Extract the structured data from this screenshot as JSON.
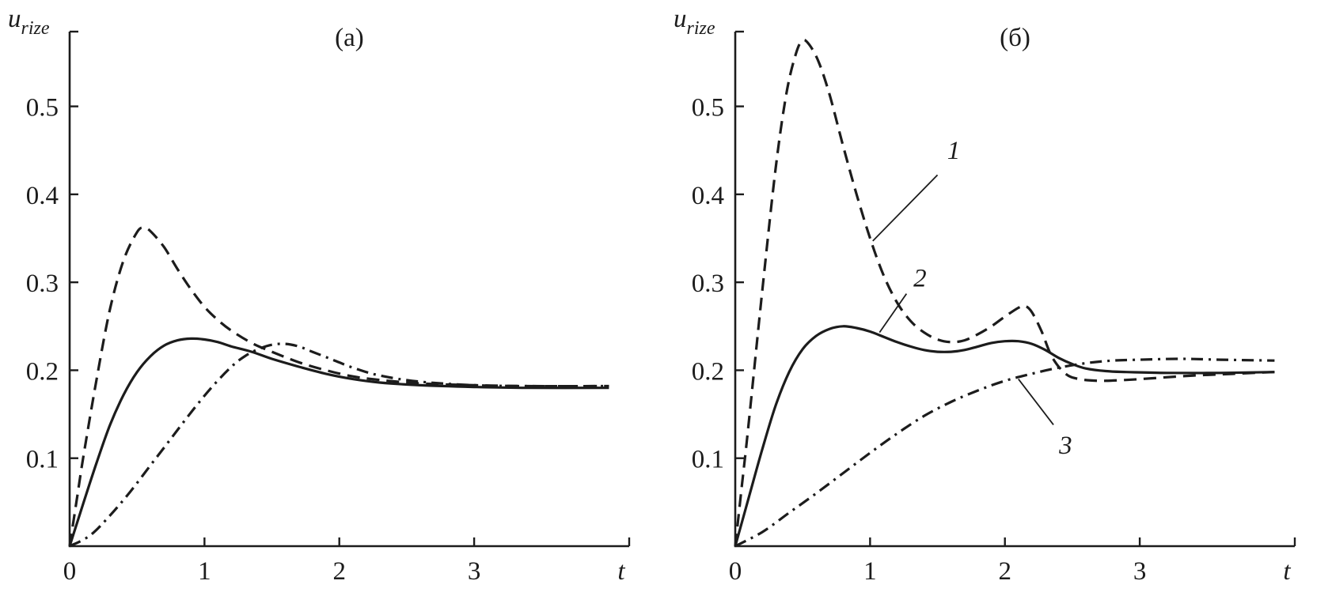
{
  "figure": {
    "background": "#ffffff",
    "stroke_color": "#1c1c1c"
  },
  "chart_data": [
    {
      "type": "line",
      "title": "(а)",
      "xlabel": "t",
      "ylabel": {
        "main": "u",
        "sub": "rize"
      },
      "axis": {
        "x_range": [
          0,
          4.15
        ],
        "y_range": [
          0,
          0.585
        ],
        "xticks": [
          0,
          1,
          2,
          3
        ],
        "yticks": [
          0.1,
          0.2,
          0.3,
          0.4,
          0.5
        ],
        "grid": false
      },
      "series": [
        {
          "name": "curve-1",
          "line_style": "dashed",
          "points": [
            [
              0,
              0
            ],
            [
              0.05,
              0.05
            ],
            [
              0.1,
              0.1
            ],
            [
              0.2,
              0.19
            ],
            [
              0.3,
              0.27
            ],
            [
              0.4,
              0.325
            ],
            [
              0.5,
              0.357
            ],
            [
              0.55,
              0.362
            ],
            [
              0.6,
              0.358
            ],
            [
              0.7,
              0.34
            ],
            [
              0.8,
              0.315
            ],
            [
              0.9,
              0.292
            ],
            [
              1.0,
              0.272
            ],
            [
              1.1,
              0.257
            ],
            [
              1.2,
              0.245
            ],
            [
              1.35,
              0.231
            ],
            [
              1.5,
              0.221
            ],
            [
              1.7,
              0.209
            ],
            [
              1.9,
              0.2
            ],
            [
              2.1,
              0.193
            ],
            [
              2.3,
              0.189
            ],
            [
              2.6,
              0.185
            ],
            [
              3.0,
              0.183
            ],
            [
              3.4,
              0.182
            ],
            [
              4.0,
              0.182
            ]
          ]
        },
        {
          "name": "curve-2",
          "line_style": "solid",
          "points": [
            [
              0,
              0
            ],
            [
              0.1,
              0.048
            ],
            [
              0.2,
              0.095
            ],
            [
              0.3,
              0.138
            ],
            [
              0.4,
              0.172
            ],
            [
              0.5,
              0.198
            ],
            [
              0.6,
              0.216
            ],
            [
              0.7,
              0.228
            ],
            [
              0.8,
              0.234
            ],
            [
              0.9,
              0.236
            ],
            [
              1.0,
              0.235
            ],
            [
              1.1,
              0.232
            ],
            [
              1.2,
              0.227
            ],
            [
              1.35,
              0.221
            ],
            [
              1.5,
              0.213
            ],
            [
              1.7,
              0.204
            ],
            [
              1.9,
              0.196
            ],
            [
              2.1,
              0.19
            ],
            [
              2.3,
              0.186
            ],
            [
              2.6,
              0.183
            ],
            [
              3.0,
              0.181
            ],
            [
              3.4,
              0.18
            ],
            [
              4.0,
              0.18
            ]
          ]
        },
        {
          "name": "curve-3",
          "line_style": "dashdot",
          "points": [
            [
              0,
              0
            ],
            [
              0.15,
              0.012
            ],
            [
              0.3,
              0.035
            ],
            [
              0.45,
              0.062
            ],
            [
              0.6,
              0.092
            ],
            [
              0.75,
              0.122
            ],
            [
              0.9,
              0.152
            ],
            [
              1.05,
              0.18
            ],
            [
              1.2,
              0.204
            ],
            [
              1.3,
              0.216
            ],
            [
              1.4,
              0.224
            ],
            [
              1.5,
              0.229
            ],
            [
              1.6,
              0.23
            ],
            [
              1.7,
              0.227
            ],
            [
              1.8,
              0.221
            ],
            [
              1.95,
              0.212
            ],
            [
              2.1,
              0.203
            ],
            [
              2.3,
              0.194
            ],
            [
              2.6,
              0.187
            ],
            [
              3.0,
              0.183
            ],
            [
              3.4,
              0.182
            ],
            [
              4.0,
              0.182
            ]
          ]
        }
      ],
      "annotations": []
    },
    {
      "type": "line",
      "title": "(б)",
      "xlabel": "t",
      "ylabel": {
        "main": "u",
        "sub": "rize"
      },
      "axis": {
        "x_range": [
          0,
          4.15
        ],
        "y_range": [
          0,
          0.585
        ],
        "xticks": [
          0,
          1,
          2,
          3
        ],
        "yticks": [
          0.1,
          0.2,
          0.3,
          0.4,
          0.5
        ],
        "grid": false
      },
      "series": [
        {
          "name": "curve-1",
          "line_style": "dashed",
          "points": [
            [
              0,
              0
            ],
            [
              0.05,
              0.07
            ],
            [
              0.1,
              0.14
            ],
            [
              0.2,
              0.29
            ],
            [
              0.3,
              0.43
            ],
            [
              0.38,
              0.515
            ],
            [
              0.45,
              0.56
            ],
            [
              0.5,
              0.575
            ],
            [
              0.55,
              0.57
            ],
            [
              0.62,
              0.55
            ],
            [
              0.7,
              0.513
            ],
            [
              0.8,
              0.455
            ],
            [
              0.9,
              0.4
            ],
            [
              1.0,
              0.35
            ],
            [
              1.1,
              0.308
            ],
            [
              1.2,
              0.277
            ],
            [
              1.3,
              0.256
            ],
            [
              1.4,
              0.243
            ],
            [
              1.5,
              0.235
            ],
            [
              1.6,
              0.232
            ],
            [
              1.7,
              0.234
            ],
            [
              1.8,
              0.241
            ],
            [
              1.9,
              0.25
            ],
            [
              2.0,
              0.261
            ],
            [
              2.1,
              0.271
            ],
            [
              2.15,
              0.273
            ],
            [
              2.2,
              0.266
            ],
            [
              2.27,
              0.245
            ],
            [
              2.35,
              0.215
            ],
            [
              2.45,
              0.196
            ],
            [
              2.55,
              0.19
            ],
            [
              2.7,
              0.188
            ],
            [
              2.9,
              0.189
            ],
            [
              3.1,
              0.191
            ],
            [
              3.4,
              0.194
            ],
            [
              3.7,
              0.196
            ],
            [
              4.0,
              0.198
            ]
          ]
        },
        {
          "name": "curve-2",
          "line_style": "solid",
          "points": [
            [
              0,
              0
            ],
            [
              0.1,
              0.055
            ],
            [
              0.2,
              0.11
            ],
            [
              0.3,
              0.16
            ],
            [
              0.4,
              0.198
            ],
            [
              0.5,
              0.224
            ],
            [
              0.6,
              0.239
            ],
            [
              0.7,
              0.247
            ],
            [
              0.8,
              0.25
            ],
            [
              0.9,
              0.248
            ],
            [
              1.0,
              0.244
            ],
            [
              1.1,
              0.238
            ],
            [
              1.2,
              0.232
            ],
            [
              1.3,
              0.227
            ],
            [
              1.4,
              0.223
            ],
            [
              1.5,
              0.221
            ],
            [
              1.6,
              0.221
            ],
            [
              1.7,
              0.223
            ],
            [
              1.8,
              0.227
            ],
            [
              1.9,
              0.231
            ],
            [
              2.0,
              0.233
            ],
            [
              2.1,
              0.233
            ],
            [
              2.2,
              0.23
            ],
            [
              2.3,
              0.223
            ],
            [
              2.4,
              0.214
            ],
            [
              2.5,
              0.207
            ],
            [
              2.6,
              0.202
            ],
            [
              2.75,
              0.199
            ],
            [
              2.9,
              0.198
            ],
            [
              3.2,
              0.197
            ],
            [
              3.6,
              0.197
            ],
            [
              4.0,
              0.198
            ]
          ]
        },
        {
          "name": "curve-3",
          "line_style": "dashdot",
          "points": [
            [
              0,
              0
            ],
            [
              0.2,
              0.016
            ],
            [
              0.4,
              0.038
            ],
            [
              0.6,
              0.06
            ],
            [
              0.8,
              0.083
            ],
            [
              1.0,
              0.106
            ],
            [
              1.2,
              0.128
            ],
            [
              1.4,
              0.148
            ],
            [
              1.6,
              0.164
            ],
            [
              1.8,
              0.177
            ],
            [
              2.0,
              0.188
            ],
            [
              2.2,
              0.196
            ],
            [
              2.4,
              0.203
            ],
            [
              2.6,
              0.208
            ],
            [
              2.8,
              0.211
            ],
            [
              3.0,
              0.212
            ],
            [
              3.3,
              0.213
            ],
            [
              3.6,
              0.212
            ],
            [
              4.0,
              0.211
            ]
          ]
        }
      ],
      "annotations": [
        {
          "label": "1",
          "label_x": 1.62,
          "label_y": 0.45,
          "line": [
            [
              1.5,
              0.422
            ],
            [
              1.02,
              0.347
            ]
          ]
        },
        {
          "label": "2",
          "label_x": 1.37,
          "label_y": 0.305,
          "line": [
            [
              1.27,
              0.287
            ],
            [
              1.07,
              0.243
            ]
          ]
        },
        {
          "label": "3",
          "label_x": 2.45,
          "label_y": 0.115,
          "line": [
            [
              2.36,
              0.138
            ],
            [
              2.1,
              0.19
            ]
          ]
        }
      ]
    }
  ]
}
